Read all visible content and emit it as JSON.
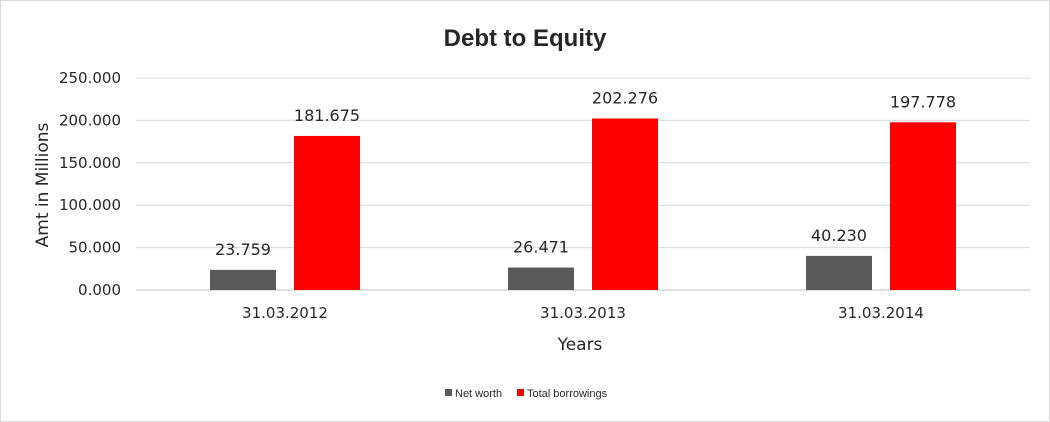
{
  "chart_data": {
    "type": "bar",
    "title": "Debt to Equity",
    "xlabel": "Years",
    "ylabel": "Amt in Millions",
    "categories": [
      "31.03.2012",
      "31.03.2013",
      "31.03.2014"
    ],
    "series": [
      {
        "name": "Net worth",
        "color": "#595959",
        "values": [
          23.759,
          26.471,
          40.23
        ],
        "labels": [
          "23.759",
          "26.471",
          "40.230"
        ]
      },
      {
        "name": "Total borrowings",
        "color": "#ff0000",
        "values": [
          181.675,
          202.276,
          197.778
        ],
        "labels": [
          "181.675",
          "202.276",
          "197.778"
        ]
      }
    ],
    "ylim": [
      0,
      250
    ],
    "yticks": [
      0,
      50,
      100,
      150,
      200,
      250
    ],
    "ytick_labels": [
      "0.000",
      "50.000",
      "100.000",
      "150.000",
      "200.000",
      "250.000"
    ],
    "grid": true,
    "legend_position": "bottom"
  }
}
